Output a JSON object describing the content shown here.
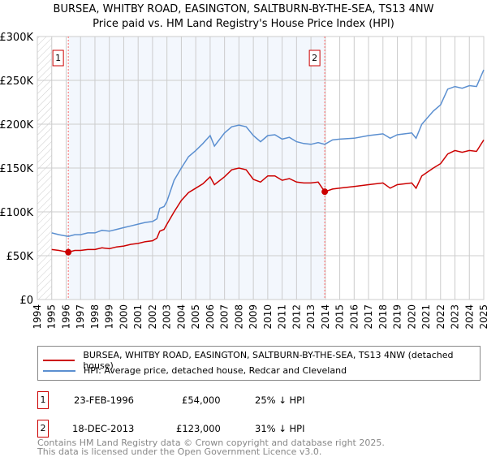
{
  "title": "BURSEA, WHITBY ROAD, EASINGTON, SALTBURN-BY-THE-SEA, TS13 4NW",
  "subtitle": "Price paid vs. HM Land Registry's House Price Index (HPI)",
  "chart_data": {
    "type": "line",
    "xlim": [
      1994,
      2025
    ],
    "ylim": [
      0,
      300000
    ],
    "yticks": [
      0,
      50000,
      100000,
      150000,
      200000,
      250000,
      300000
    ],
    "ytick_labels": [
      "£0",
      "£50K",
      "£100K",
      "£150K",
      "£200K",
      "£250K",
      "£300K"
    ],
    "xticks": [
      1994,
      1995,
      1996,
      1997,
      1998,
      1999,
      2000,
      2001,
      2002,
      2003,
      2004,
      2005,
      2006,
      2007,
      2008,
      2009,
      2010,
      2011,
      2012,
      2013,
      2014,
      2015,
      2016,
      2017,
      2018,
      2019,
      2020,
      2021,
      2022,
      2023,
      2024,
      2025
    ],
    "grid": true,
    "series": [
      {
        "name": "BURSEA, WHITBY ROAD, EASINGTON, SALTBURN-BY-THE-SEA, TS13 4NW (detached house)",
        "color": "#cc0000",
        "x": [
          1995,
          1995.5,
          1996.15,
          1996.6,
          1997,
          1997.5,
          1998,
          1998.5,
          1999,
          1999.5,
          2000,
          2000.5,
          2001,
          2001.5,
          2002,
          2002.3,
          2002.5,
          2002.8,
          2003,
          2003.5,
          2004,
          2004.5,
          2005,
          2005.5,
          2006,
          2006.3,
          2007,
          2007.5,
          2008,
          2008.5,
          2009,
          2009.5,
          2010,
          2010.5,
          2011,
          2011.5,
          2012,
          2012.5,
          2013,
          2013.5,
          2013.96,
          2014.5,
          2015,
          2016,
          2017,
          2018,
          2018.5,
          2019,
          2020,
          2020.3,
          2020.7,
          2021.5,
          2022,
          2022.5,
          2023,
          2023.5,
          2024,
          2024.5,
          2025
        ],
        "y": [
          57000,
          56000,
          54000,
          56000,
          56000,
          57000,
          57000,
          59000,
          58000,
          60000,
          61000,
          63000,
          64000,
          66000,
          67000,
          70000,
          78000,
          80000,
          86000,
          100000,
          113000,
          122000,
          127000,
          132000,
          140000,
          131000,
          140000,
          148000,
          150000,
          148000,
          137000,
          134000,
          141000,
          141000,
          136000,
          138000,
          134000,
          133000,
          133000,
          134000,
          123000,
          126000,
          127000,
          129000,
          131000,
          133000,
          127000,
          131000,
          133000,
          127000,
          141000,
          150000,
          155000,
          166000,
          170000,
          168000,
          170000,
          169000,
          182000
        ]
      },
      {
        "name": "HPI: Average price, detached house, Redcar and Cleveland",
        "color": "#5b8fd0",
        "x": [
          1995,
          1995.5,
          1996.15,
          1996.6,
          1997,
          1997.5,
          1998,
          1998.5,
          1999,
          1999.5,
          2000,
          2000.5,
          2001,
          2001.5,
          2002,
          2002.3,
          2002.5,
          2002.8,
          2003,
          2003.5,
          2004,
          2004.5,
          2005,
          2005.5,
          2006,
          2006.3,
          2007,
          2007.5,
          2008,
          2008.5,
          2009,
          2009.5,
          2010,
          2010.5,
          2011,
          2011.5,
          2012,
          2012.5,
          2013,
          2013.5,
          2013.96,
          2014.5,
          2015,
          2016,
          2017,
          2018,
          2018.5,
          2019,
          2020,
          2020.3,
          2020.7,
          2021.5,
          2022,
          2022.5,
          2023,
          2023.5,
          2024,
          2024.5,
          2025
        ],
        "y": [
          76000,
          74000,
          72000,
          74000,
          74000,
          76000,
          76000,
          79000,
          78000,
          80000,
          82000,
          84000,
          86000,
          88000,
          89000,
          92000,
          104000,
          106000,
          112000,
          136000,
          150000,
          163000,
          170000,
          178000,
          187000,
          175000,
          190000,
          197000,
          199000,
          197000,
          187000,
          180000,
          187000,
          188000,
          183000,
          185000,
          180000,
          178000,
          177000,
          179000,
          177000,
          182000,
          183000,
          184000,
          187000,
          189000,
          184000,
          188000,
          190000,
          184000,
          200000,
          215000,
          222000,
          240000,
          243000,
          241000,
          244000,
          243000,
          262000
        ]
      }
    ],
    "annotations": [
      {
        "label": "1",
        "x": 1996.15,
        "y": 54000
      },
      {
        "label": "2",
        "x": 2013.96,
        "y": 123000
      }
    ]
  },
  "legend": {
    "red": "BURSEA, WHITBY ROAD, EASINGTON, SALTBURN-BY-THE-SEA, TS13 4NW (detached house)",
    "blue": "HPI: Average price, detached house, Redcar and Cleveland"
  },
  "transactions": [
    {
      "num": "1",
      "date": "23-FEB-1996",
      "price": "£54,000",
      "delta": "25% ↓ HPI"
    },
    {
      "num": "2",
      "date": "18-DEC-2013",
      "price": "£123,000",
      "delta": "31% ↓ HPI"
    }
  ],
  "footer": {
    "line1": "Contains HM Land Registry data © Crown copyright and database right 2025.",
    "line2": "This data is licensed under the Open Government Licence v3.0."
  }
}
